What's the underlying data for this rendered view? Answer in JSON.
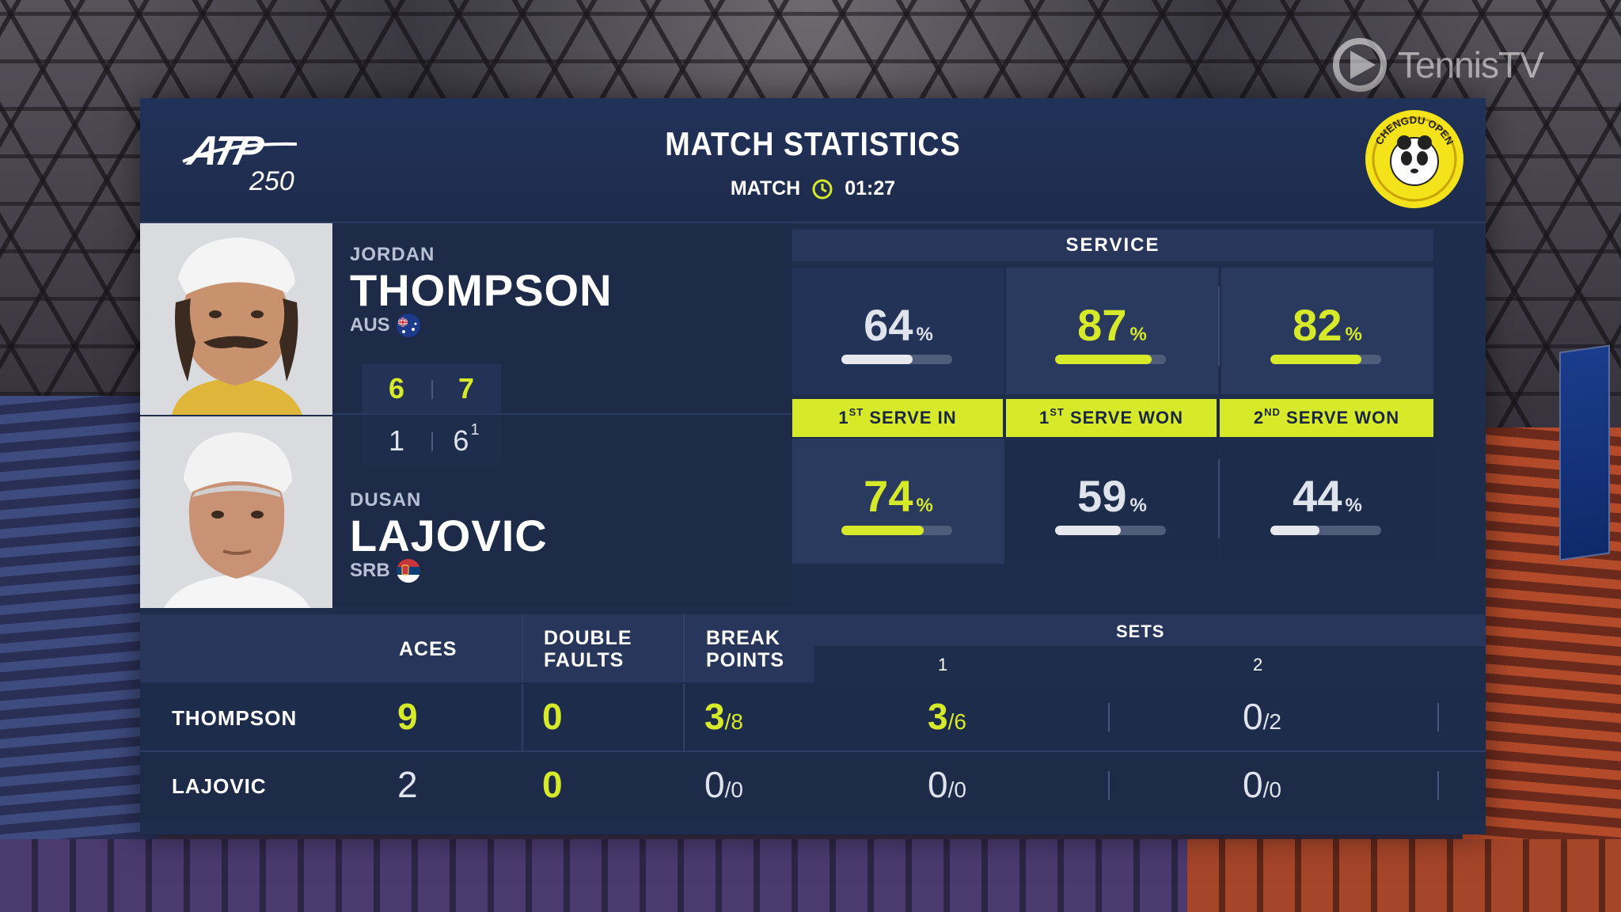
{
  "broadcaster": "TennisTV",
  "header": {
    "title": "MATCH STATISTICS",
    "match_label": "MATCH",
    "match_time": "01:27",
    "tour_logo_text": "ATP",
    "tour_level": "250",
    "tournament_logo": "CHENGDU OPEN"
  },
  "players": [
    {
      "first_name": "JORDAN",
      "last_name": "THOMPSON",
      "country": "AUS",
      "flag_icon": "australia-flag-icon",
      "sets": [
        {
          "games": "6",
          "tiebreak": ""
        },
        {
          "games": "7",
          "tiebreak": ""
        }
      ]
    },
    {
      "first_name": "DUSAN",
      "last_name": "LAJOVIC",
      "country": "SRB",
      "flag_icon": "serbia-flag-icon",
      "sets": [
        {
          "games": "1",
          "tiebreak": ""
        },
        {
          "games": "6",
          "tiebreak": "1"
        }
      ]
    }
  ],
  "service": {
    "heading": "SERVICE",
    "categories": [
      {
        "label_main": "1",
        "label_sup": "ST",
        "label_rest": " SERVE IN"
      },
      {
        "label_main": "1",
        "label_sup": "ST",
        "label_rest": " SERVE WON"
      },
      {
        "label_main": "2",
        "label_sup": "ND",
        "label_rest": " SERVE WON"
      }
    ],
    "thompson": [
      {
        "value": "64",
        "unit": "%",
        "fraction": 0.64
      },
      {
        "value": "87",
        "unit": "%",
        "fraction": 0.87
      },
      {
        "value": "82",
        "unit": "%",
        "fraction": 0.82
      }
    ],
    "lajovic": [
      {
        "value": "74",
        "unit": "%",
        "fraction": 0.74
      },
      {
        "value": "59",
        "unit": "%",
        "fraction": 0.59
      },
      {
        "value": "44",
        "unit": "%",
        "fraction": 0.44
      }
    ]
  },
  "table": {
    "headers": {
      "aces": "ACES",
      "double_faults_1": "DOUBLE",
      "double_faults_2": "FAULTS",
      "break_points_1": "BREAK",
      "break_points_2": "POINTS",
      "sets": "SETS",
      "set1": "1",
      "set2": "2"
    },
    "rows": [
      {
        "name": "THOMPSON",
        "aces": "9",
        "double_faults": "0",
        "break_points": {
          "won": "3",
          "of": "/8"
        },
        "set1": {
          "won": "3",
          "of": "/6"
        },
        "set2": {
          "won": "0",
          "of": "/2"
        }
      },
      {
        "name": "LAJOVIC",
        "aces": "2",
        "double_faults": "0",
        "break_points": {
          "won": "0",
          "of": "/0"
        },
        "set1": {
          "won": "0",
          "of": "/0"
        },
        "set2": {
          "won": "0",
          "of": "/0"
        }
      }
    ]
  },
  "colors": {
    "accent": "#d6ea2a",
    "panel": "#1f2d4c",
    "header": "#27365a"
  }
}
